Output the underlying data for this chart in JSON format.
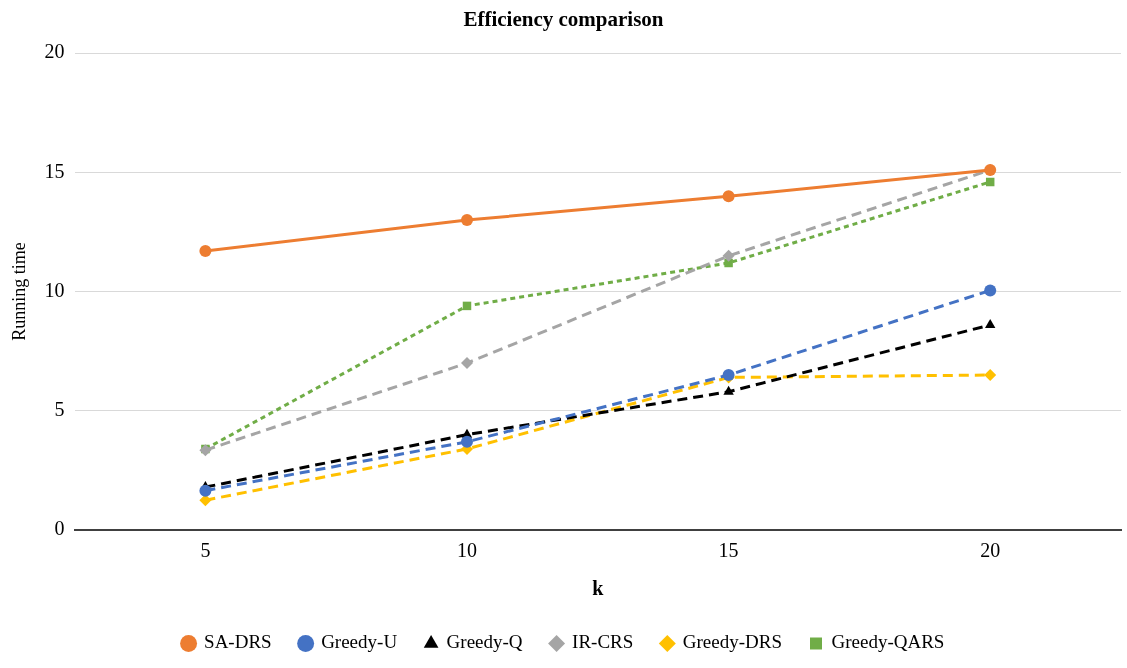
{
  "chart_data": {
    "type": "line",
    "title": "Efficiency comparison",
    "xlabel": "k",
    "ylabel": "Running time",
    "categories": [
      "5",
      "10",
      "15",
      "20"
    ],
    "ylim": [
      0,
      20
    ],
    "yticks": [
      0,
      5,
      10,
      15,
      20
    ],
    "grid": "y",
    "legend": "bottom",
    "series": [
      {
        "name": "SA-DRS",
        "color": "#ed7d31",
        "marker": "circle",
        "line_style": "solid",
        "values": [
          11.7,
          13.0,
          14.0,
          15.1
        ]
      },
      {
        "name": "Greedy-U",
        "color": "#4472c4",
        "marker": "circle",
        "line_style": "dashed",
        "values": [
          1.65,
          3.7,
          6.5,
          10.05
        ]
      },
      {
        "name": "Greedy-Q",
        "color": "#000000",
        "marker": "triangle",
        "line_style": "dashed",
        "values": [
          1.8,
          4.0,
          5.8,
          8.6
        ]
      },
      {
        "name": "IR-CRS",
        "color": "#a5a5a5",
        "marker": "diamond",
        "line_style": "dashed",
        "values": [
          3.35,
          7.0,
          11.5,
          15.1
        ]
      },
      {
        "name": "Greedy-DRS",
        "color": "#ffc000",
        "marker": "diamond",
        "line_style": "dashed",
        "values": [
          1.25,
          3.4,
          6.4,
          6.5
        ]
      },
      {
        "name": "Greedy-QARS",
        "color": "#70ad47",
        "marker": "square",
        "line_style": "dotted",
        "values": [
          3.4,
          9.4,
          11.2,
          14.6
        ]
      }
    ]
  }
}
